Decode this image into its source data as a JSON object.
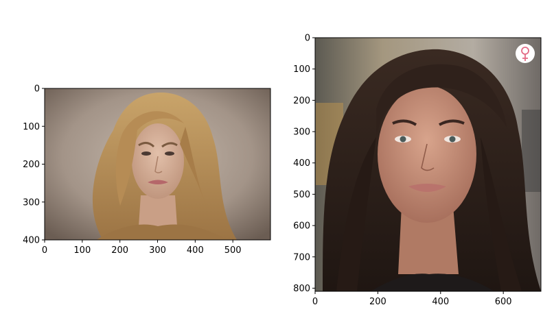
{
  "chart_data": [
    {
      "type": "image",
      "description_hidden": "",
      "xlim": [
        0,
        600
      ],
      "ylim": [
        400,
        0
      ],
      "xticks": [
        0,
        100,
        200,
        300,
        400,
        500
      ],
      "yticks": [
        0,
        100,
        200,
        300,
        400
      ],
      "colors": {
        "bg_top": "#b8aa9e",
        "bg_bottom": "#7a6a5f",
        "hair": "#b8905a",
        "skin": "#d9b29a",
        "lips": "#b5676a"
      }
    },
    {
      "type": "image",
      "xlim": [
        0,
        720
      ],
      "ylim": [
        810,
        0
      ],
      "xticks": [
        0,
        200,
        400,
        600
      ],
      "yticks": [
        0,
        100,
        200,
        300,
        400,
        500,
        600,
        700,
        800
      ],
      "badge_icon": "venus-icon",
      "colors": {
        "bg": "#8c8478",
        "hair": "#2a1d18",
        "skin": "#c48f79",
        "lips": "#b9736c",
        "badge": "#e36b86"
      }
    }
  ]
}
